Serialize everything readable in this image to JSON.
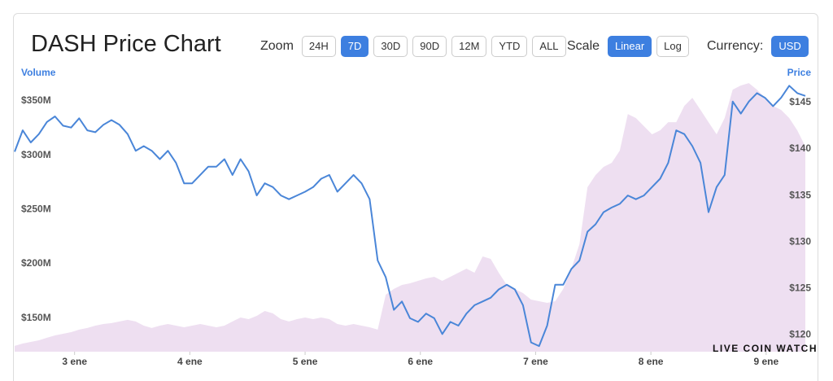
{
  "title": "DASH Price Chart",
  "controls": {
    "zoom": {
      "label": "Zoom",
      "options": [
        "24H",
        "7D",
        "30D",
        "90D",
        "12M",
        "YTD",
        "ALL"
      ],
      "selected": 1
    },
    "scale": {
      "label": "Scale",
      "options": [
        "Linear",
        "Log"
      ],
      "selected": 0
    },
    "currency": {
      "label": "Currency:",
      "options": [
        "USD"
      ],
      "selected": 0
    }
  },
  "watermark": "LIVE COIN WATCH",
  "chart_data": {
    "type": "line",
    "ylabel": "Volume",
    "y2label": "Price",
    "x": [
      2.48,
      2.55,
      2.62,
      2.69,
      2.76,
      2.83,
      2.9,
      2.97,
      3.04,
      3.11,
      3.18,
      3.25,
      3.32,
      3.39,
      3.46,
      3.53,
      3.6,
      3.67,
      3.74,
      3.81,
      3.88,
      3.95,
      4.02,
      4.09,
      4.16,
      4.23,
      4.3,
      4.37,
      4.44,
      4.51,
      4.58,
      4.65,
      4.72,
      4.79,
      4.86,
      4.93,
      5.0,
      5.07,
      5.14,
      5.21,
      5.28,
      5.35,
      5.42,
      5.49,
      5.56,
      5.63,
      5.7,
      5.77,
      5.84,
      5.91,
      5.98,
      6.05,
      6.12,
      6.19,
      6.26,
      6.33,
      6.4,
      6.47,
      6.54,
      6.61,
      6.68,
      6.75,
      6.82,
      6.89,
      6.96,
      7.03,
      7.1,
      7.17,
      7.24,
      7.31,
      7.38,
      7.45,
      7.52,
      7.59,
      7.66,
      7.73,
      7.8,
      7.87,
      7.94,
      8.01,
      8.08,
      8.15,
      8.22,
      8.29,
      8.36,
      8.43,
      8.5,
      8.57,
      8.64,
      8.71,
      8.78,
      8.85,
      8.92,
      8.99,
      9.06,
      9.13,
      9.2,
      9.27,
      9.34
    ],
    "series": [
      {
        "type": "area",
        "color": "#eedff1",
        "values": [
          124.3,
          126.5,
          128,
          129.5,
          131.8,
          134,
          135.5,
          137,
          139.3,
          140.8,
          143,
          144.5,
          145.3,
          146.8,
          148.3,
          146.8,
          143,
          140.8,
          143,
          144.5,
          143,
          141.5,
          143,
          144.5,
          143,
          141.5,
          143,
          146.8,
          150.5,
          149,
          152,
          156.5,
          154.3,
          149,
          146.8,
          149,
          150.5,
          149,
          150.5,
          149,
          144.5,
          143,
          144.5,
          143,
          141.5,
          139.3,
          171.5,
          176.8,
          180.5,
          182,
          184.3,
          186.5,
          188,
          184.3,
          188,
          191.8,
          195.5,
          191.8,
          206.8,
          204.5,
          191.8,
          180.5,
          176.8,
          173,
          167,
          165.5,
          164,
          165.5,
          176.8,
          195.5,
          218,
          270.5,
          281.8,
          289.3,
          293,
          304.3,
          338,
          334.3,
          326.8,
          319.3,
          323,
          330.5,
          330.5,
          345.5,
          353,
          341.8,
          330.5,
          319.3,
          334.3,
          360.5,
          364.3,
          366.5,
          360.5,
          353,
          345.5,
          341.8,
          334.3,
          323,
          308
        ]
      },
      {
        "type": "line",
        "color": "#4a86d8",
        "axis": "y2",
        "values": [
          139.7,
          142.0,
          140.7,
          141.6,
          142.9,
          143.5,
          142.5,
          142.3,
          143.3,
          142.0,
          141.8,
          142.6,
          143.1,
          142.6,
          141.6,
          139.8,
          140.3,
          139.8,
          138.9,
          139.8,
          138.5,
          136.3,
          136.3,
          137.2,
          138.1,
          138.1,
          138.9,
          137.2,
          138.9,
          137.6,
          135.0,
          136.3,
          135.9,
          135.0,
          134.6,
          135.0,
          135.4,
          135.9,
          136.8,
          137.2,
          135.4,
          136.3,
          137.2,
          136.3,
          134.6,
          128.0,
          126.2,
          122.7,
          123.6,
          121.8,
          121.4,
          122.3,
          121.8,
          120.1,
          121.4,
          121.0,
          122.3,
          123.2,
          123.6,
          124.0,
          124.9,
          125.4,
          124.9,
          123.2,
          119.2,
          118.8,
          121.0,
          125.4,
          125.4,
          127.1,
          128.0,
          131.1,
          131.9,
          133.2,
          133.7,
          134.1,
          135.0,
          134.6,
          135.0,
          135.9,
          136.8,
          138.5,
          142.0,
          141.6,
          140.3,
          138.5,
          133.2,
          135.9,
          137.2,
          145.1,
          143.8,
          145.1,
          146.0,
          145.5,
          144.6,
          145.5,
          146.8,
          146.0,
          145.7
        ]
      }
    ],
    "xlim": [
      2.48,
      9.46
    ],
    "xticks": [
      {
        "value": 3,
        "label": "3 ene"
      },
      {
        "value": 4,
        "label": "4 ene"
      },
      {
        "value": 5,
        "label": "5 ene"
      },
      {
        "value": 6,
        "label": "6 ene"
      },
      {
        "value": 7,
        "label": "7 ene"
      },
      {
        "value": 8,
        "label": "8 ene"
      },
      {
        "value": 9,
        "label": "9 ene"
      }
    ],
    "ylim": [
      119,
      371.8
    ],
    "yticks": [
      {
        "value": 150,
        "label": "$150M"
      },
      {
        "value": 200,
        "label": "$200M"
      },
      {
        "value": 250,
        "label": "$250M"
      },
      {
        "value": 300,
        "label": "$300M"
      },
      {
        "value": 350,
        "label": "$350M"
      }
    ],
    "y2lim": [
      118.2,
      147.7
    ],
    "y2ticks": [
      {
        "value": 120,
        "label": "$120"
      },
      {
        "value": 125,
        "label": "$125"
      },
      {
        "value": 130,
        "label": "$130"
      },
      {
        "value": 135,
        "label": "$135"
      },
      {
        "value": 140,
        "label": "$140"
      },
      {
        "value": 145,
        "label": "$145"
      }
    ],
    "grid": false
  }
}
